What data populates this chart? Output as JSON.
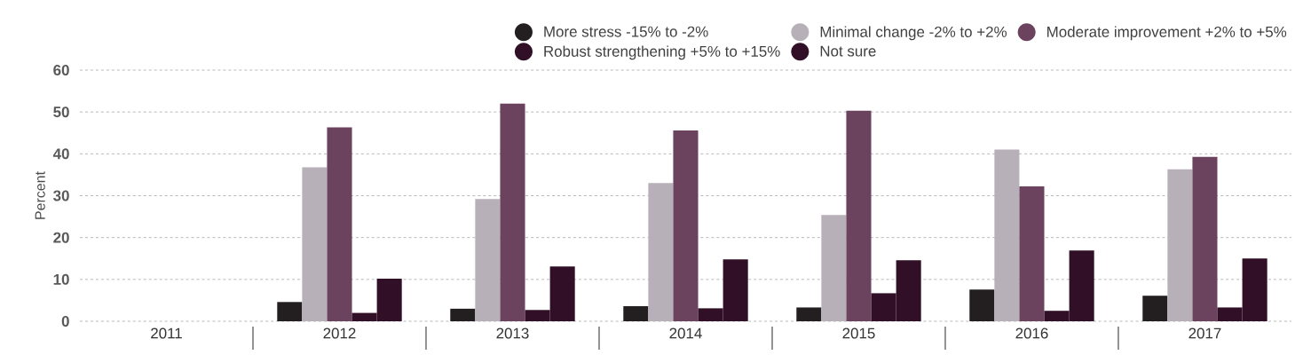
{
  "chart_data": {
    "type": "bar",
    "ylabel": "Percent",
    "categories": [
      "2011",
      "2012",
      "2013",
      "2014",
      "2015",
      "2016",
      "2017"
    ],
    "series": [
      {
        "name": "More stress -15% to -2%",
        "color": "#231f20",
        "values": [
          null,
          4.6,
          3.0,
          3.6,
          3.3,
          7.6,
          6.1
        ]
      },
      {
        "name": "Minimal change -2% to +2%",
        "color": "#b8b0b9",
        "values": [
          null,
          36.8,
          29.2,
          33.0,
          25.4,
          41.0,
          36.3
        ]
      },
      {
        "name": "Moderate improvement +2% to +5%",
        "color": "#6b435e",
        "values": [
          null,
          46.3,
          52.0,
          45.6,
          50.3,
          32.2,
          39.3
        ]
      },
      {
        "name": "Robust strengthening +5% to +15%",
        "color": "#310f26",
        "values": [
          null,
          2.0,
          2.7,
          3.1,
          6.7,
          2.5,
          3.3
        ]
      },
      {
        "name": "Not sure",
        "color": "#310f26",
        "values": [
          null,
          10.2,
          13.1,
          14.8,
          14.6,
          16.9,
          15.0
        ]
      }
    ],
    "ylim": [
      0,
      60
    ],
    "yticks": [
      0,
      10,
      20,
      30,
      40,
      50,
      60
    ],
    "grid": "y",
    "legend": "top right"
  }
}
